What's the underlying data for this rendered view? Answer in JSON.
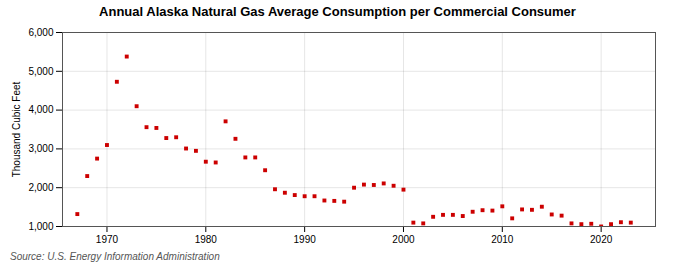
{
  "chart_data": {
    "type": "scatter",
    "title": "Annual Alaska Natural Gas Average Consumption per Commercial Consumer",
    "ylabel": "Thousand Cubic Feet",
    "annotations": [
      "Source: U.S. Energy Information Administration"
    ],
    "color": "#cc0000",
    "marker": "square",
    "grid": true,
    "xlim": [
      1965.5,
      2025.5
    ],
    "xticks": [
      1970,
      1980,
      1990,
      2000,
      2010,
      2020
    ],
    "ylim": [
      1000,
      6000
    ],
    "yticks": [
      {
        "value": 1000,
        "label": "1,000"
      },
      {
        "value": 2000,
        "label": "2,000"
      },
      {
        "value": 3000,
        "label": "3,000"
      },
      {
        "value": 4000,
        "label": "4,000"
      },
      {
        "value": 5000,
        "label": "5,000"
      },
      {
        "value": 6000,
        "label": "6,000"
      }
    ],
    "x": [
      1967,
      1968,
      1969,
      1970,
      1971,
      1972,
      1973,
      1974,
      1975,
      1976,
      1977,
      1978,
      1979,
      1980,
      1981,
      1982,
      1983,
      1984,
      1985,
      1986,
      1987,
      1988,
      1989,
      1990,
      1991,
      1992,
      1993,
      1994,
      1995,
      1996,
      1997,
      1998,
      1999,
      2000,
      2001,
      2002,
      2003,
      2004,
      2005,
      2006,
      2007,
      2008,
      2009,
      2010,
      2011,
      2012,
      2013,
      2014,
      2015,
      2016,
      2017,
      2018,
      2019,
      2020,
      2021,
      2022,
      2023
    ],
    "values": [
      1320,
      2300,
      2750,
      3100,
      4730,
      5380,
      4100,
      3560,
      3540,
      3280,
      3300,
      3010,
      2950,
      2670,
      2650,
      3710,
      3260,
      2780,
      2780,
      2450,
      1960,
      1870,
      1810,
      1780,
      1780,
      1670,
      1660,
      1640,
      2000,
      2080,
      2070,
      2110,
      2050,
      1950,
      1100,
      1080,
      1250,
      1300,
      1300,
      1270,
      1380,
      1420,
      1410,
      1520,
      1210,
      1440,
      1430,
      1510,
      1310,
      1280,
      1080,
      1060,
      1070,
      1000,
      1060,
      1110,
      1100
    ]
  }
}
